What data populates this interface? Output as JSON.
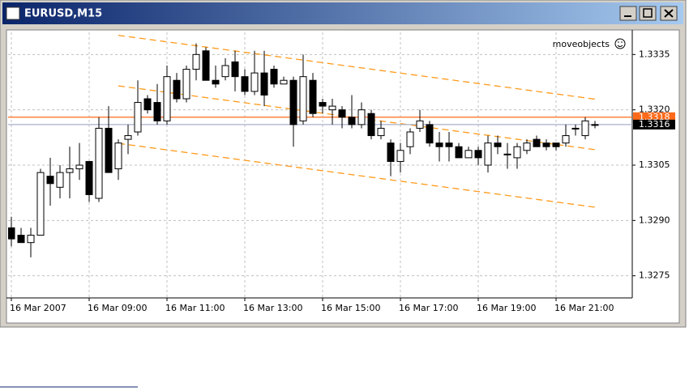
{
  "window": {
    "title": "EURUSD,M15"
  },
  "chart_data": {
    "type": "candlestick",
    "annotation": "moveobjects",
    "categories": [
      "16 Mar 2007",
      null,
      null,
      null,
      null,
      null,
      null,
      null,
      "16 Mar 09:00",
      null,
      null,
      null,
      null,
      null,
      null,
      null,
      "16 Mar 11:00",
      null,
      null,
      null,
      null,
      null,
      null,
      null,
      "16 Mar 13:00",
      null,
      null,
      null,
      null,
      null,
      null,
      null,
      "16 Mar 15:00",
      null,
      null,
      null,
      null,
      null,
      null,
      null,
      "16 Mar 17:00",
      null,
      null,
      null,
      null,
      null,
      null,
      null,
      "16 Mar 19:00",
      null,
      null,
      null,
      null,
      null,
      null,
      null,
      "16 Mar 21:00",
      null,
      null,
      null,
      null
    ],
    "open": [
      1.3288,
      1.3286,
      1.3284,
      1.3286,
      1.3302,
      1.3299,
      1.3303,
      1.3304,
      1.3306,
      1.3296,
      1.3315,
      1.3304,
      1.3312,
      1.3314,
      1.3323,
      1.3322,
      1.3317,
      1.3328,
      1.3323,
      1.3331,
      1.3336,
      1.3328,
      1.3329,
      1.3333,
      1.3329,
      1.3325,
      1.333,
      1.3331,
      1.3327,
      1.3328,
      1.3317,
      1.3328,
      1.3322,
      1.332,
      1.332,
      1.3318,
      1.3316,
      1.3319,
      1.3313,
      1.3311,
      1.3306,
      1.331,
      1.3315,
      1.3316,
      1.3311,
      1.3311,
      1.331,
      1.3307,
      1.3309,
      1.3305,
      1.3311,
      1.3308,
      1.3307,
      1.3309,
      1.3312,
      1.3311,
      1.3311,
      1.3311,
      1.3315,
      1.3313,
      1.3316
    ],
    "high": [
      1.3291,
      1.3288,
      1.3288,
      1.3304,
      1.3307,
      1.3305,
      1.331,
      1.3311,
      1.3306,
      1.3318,
      1.3321,
      1.3312,
      1.3316,
      1.3328,
      1.3324,
      1.3327,
      1.3332,
      1.333,
      1.3332,
      1.3338,
      1.3337,
      1.3332,
      1.3334,
      1.3336,
      1.3331,
      1.3336,
      1.3336,
      1.3332,
      1.3329,
      1.3329,
      1.3335,
      1.333,
      1.3323,
      1.3323,
      1.3321,
      1.3324,
      1.3322,
      1.332,
      1.3317,
      1.3312,
      1.3311,
      1.3315,
      1.332,
      1.3317,
      1.3314,
      1.3314,
      1.3311,
      1.331,
      1.331,
      1.3313,
      1.3313,
      1.3311,
      1.3311,
      1.3312,
      1.3313,
      1.3312,
      1.3311,
      1.3316,
      1.3316,
      1.3318,
      1.3317
    ],
    "low": [
      1.3283,
      1.3284,
      1.328,
      1.3286,
      1.3294,
      1.3296,
      1.3296,
      1.3301,
      1.3295,
      1.3295,
      1.3303,
      1.3301,
      1.3308,
      1.3313,
      1.3319,
      1.3316,
      1.3316,
      1.3322,
      1.3322,
      1.3328,
      1.3328,
      1.3326,
      1.3328,
      1.3325,
      1.3324,
      1.3324,
      1.3321,
      1.3326,
      1.3327,
      1.331,
      1.3316,
      1.3318,
      1.3319,
      1.3316,
      1.3315,
      1.3315,
      1.3315,
      1.3312,
      1.3312,
      1.3302,
      1.3303,
      1.3308,
      1.3314,
      1.331,
      1.3306,
      1.3306,
      1.3307,
      1.3307,
      1.3305,
      1.3303,
      1.3308,
      1.3304,
      1.3304,
      1.3308,
      1.331,
      1.3309,
      1.3309,
      1.331,
      1.3313,
      1.3312,
      1.3315
    ],
    "close": [
      1.3285,
      1.3284,
      1.3286,
      1.3303,
      1.33,
      1.3303,
      1.3304,
      1.3305,
      1.3297,
      1.3315,
      1.3303,
      1.3311,
      1.3313,
      1.3322,
      1.332,
      1.3317,
      1.3329,
      1.3323,
      1.3331,
      1.3335,
      1.3328,
      1.3327,
      1.3332,
      1.3329,
      1.3325,
      1.333,
      1.3324,
      1.3327,
      1.3328,
      1.3316,
      1.3329,
      1.3319,
      1.3321,
      1.3321,
      1.3318,
      1.3316,
      1.332,
      1.3313,
      1.3315,
      1.3306,
      1.3309,
      1.3314,
      1.3317,
      1.3311,
      1.331,
      1.331,
      1.3307,
      1.3309,
      1.3307,
      1.3311,
      1.331,
      1.3308,
      1.331,
      1.3311,
      1.331,
      1.331,
      1.331,
      1.3313,
      1.3315,
      1.3317,
      1.3316
    ],
    "up_color": "#ffffff",
    "down_color": "#000000",
    "ylim": [
      1.3269,
      1.3341
    ],
    "yticks": [
      1.3275,
      {
        "value": 1.329,
        "label": "1.3290"
      },
      1.3305,
      {
        "value": 1.332,
        "label": "1.3320"
      },
      1.3335
    ],
    "grid": true,
    "hlines": [
      {
        "value": 1.3318,
        "color": "#ff6a1a"
      },
      {
        "value": 1.3316,
        "color": "#a9b0c8"
      }
    ],
    "channel": {
      "color": "#ff9a1a",
      "lines": [
        {
          "x": [
            11,
            60
          ],
          "y": [
            1.33402,
            1.33229
          ]
        },
        {
          "x": [
            11,
            60
          ],
          "y": [
            1.33265,
            1.33092
          ]
        },
        {
          "x": [
            11,
            60
          ],
          "y": [
            1.33109,
            1.32936
          ]
        }
      ]
    }
  }
}
